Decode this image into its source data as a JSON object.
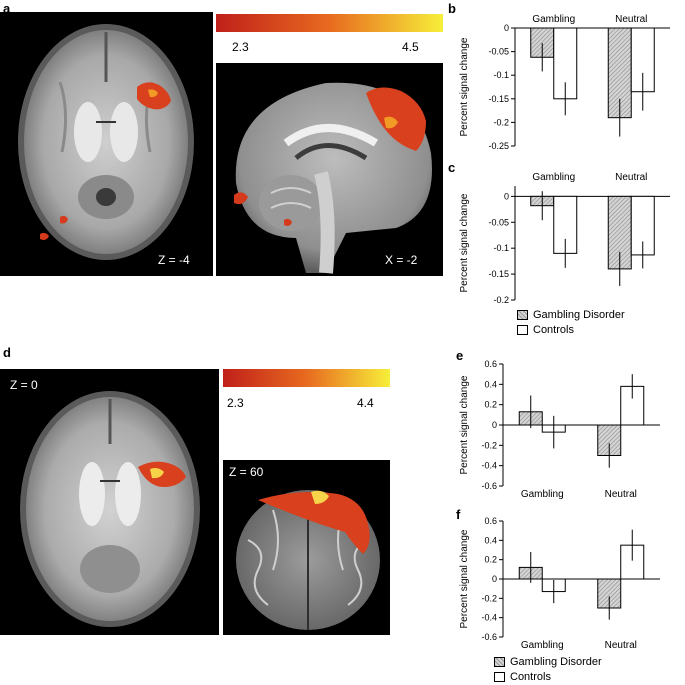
{
  "panels": {
    "a": "a",
    "b": "b",
    "c": "c",
    "d": "d",
    "e": "e",
    "f": "f"
  },
  "top": {
    "slice1_label": "Z = -4",
    "slice2_label": "X = -2",
    "colorbar": {
      "min": "2.3",
      "max": "4.5",
      "colors": [
        "#c0201a",
        "#e86a1f",
        "#f7ef3a"
      ]
    }
  },
  "bottom": {
    "slice1_label": "Z = 0",
    "slice2_label": "Z = 60",
    "colorbar": {
      "min": "2.3",
      "max": "4.4",
      "colors": [
        "#c0201a",
        "#e86a1f",
        "#f7ef3a"
      ]
    }
  },
  "legend_top": {
    "gd": "Gambling Disorder",
    "ctl": "Controls"
  },
  "legend_bottom": {
    "gd": "Gambling Disorder",
    "ctl": "Controls"
  },
  "chart_data": [
    {
      "id": "b",
      "type": "bar",
      "categories": [
        "Gambling",
        "Neutral"
      ],
      "cat_label_pos": "top",
      "ylabel": "Percent signal change",
      "ylim": [
        -0.25,
        0
      ],
      "yticks": [
        0,
        -0.05,
        -0.1,
        -0.15,
        -0.2,
        -0.25
      ],
      "ytick_labels": [
        "0",
        "-0.05",
        "-0.1",
        "-0.15",
        "-0.2",
        "-0.25"
      ],
      "series": [
        {
          "name": "Gambling Disorder",
          "values": [
            -0.062,
            -0.19
          ],
          "errors": [
            0.03,
            0.04
          ]
        },
        {
          "name": "Controls",
          "values": [
            -0.15,
            -0.135
          ],
          "errors": [
            0.035,
            0.04
          ]
        }
      ]
    },
    {
      "id": "c",
      "type": "bar",
      "categories": [
        "Gambling",
        "Neutral"
      ],
      "cat_label_pos": "top",
      "ylabel": "Percent signal change",
      "ylim": [
        -0.2,
        0.02
      ],
      "yticks": [
        0,
        -0.05,
        -0.1,
        -0.15,
        -0.2
      ],
      "ytick_labels": [
        "0",
        "-0.05",
        "-0.1",
        "-0.15",
        "-0.2"
      ],
      "series": [
        {
          "name": "Gambling Disorder",
          "values": [
            -0.018,
            -0.14
          ],
          "errors": [
            0.028,
            0.033
          ]
        },
        {
          "name": "Controls",
          "values": [
            -0.11,
            -0.113
          ],
          "errors": [
            0.028,
            0.026
          ]
        }
      ]
    },
    {
      "id": "e",
      "type": "bar",
      "categories": [
        "Gambling",
        "Neutral"
      ],
      "cat_label_pos": "bottom",
      "ylabel": "Percent signal change",
      "ylim": [
        -0.6,
        0.6
      ],
      "yticks": [
        0.6,
        0.4,
        0.2,
        0,
        -0.2,
        -0.4,
        -0.6
      ],
      "ytick_labels": [
        "0.6",
        "0.4",
        "0.2",
        "0",
        "-0.2",
        "-0.4",
        "-0.6"
      ],
      "series": [
        {
          "name": "Gambling Disorder",
          "values": [
            0.13,
            -0.3
          ],
          "errors": [
            0.16,
            0.12
          ]
        },
        {
          "name": "Controls",
          "values": [
            -0.07,
            0.38
          ],
          "errors": [
            0.16,
            0.12
          ]
        }
      ]
    },
    {
      "id": "f",
      "type": "bar",
      "categories": [
        "Gambling",
        "Neutral"
      ],
      "cat_label_pos": "bottom",
      "ylabel": "Percent signal change",
      "ylim": [
        -0.6,
        0.6
      ],
      "yticks": [
        0.6,
        0.4,
        0.2,
        0,
        -0.2,
        -0.4,
        -0.6
      ],
      "ytick_labels": [
        "0.6",
        "0.4",
        "0.2",
        "0",
        "-0.2",
        "-0.4",
        "-0.6"
      ],
      "series": [
        {
          "name": "Gambling Disorder",
          "values": [
            0.12,
            -0.3
          ],
          "errors": [
            0.16,
            0.12
          ]
        },
        {
          "name": "Controls",
          "values": [
            -0.13,
            0.35
          ],
          "errors": [
            0.12,
            0.16
          ]
        }
      ]
    }
  ]
}
